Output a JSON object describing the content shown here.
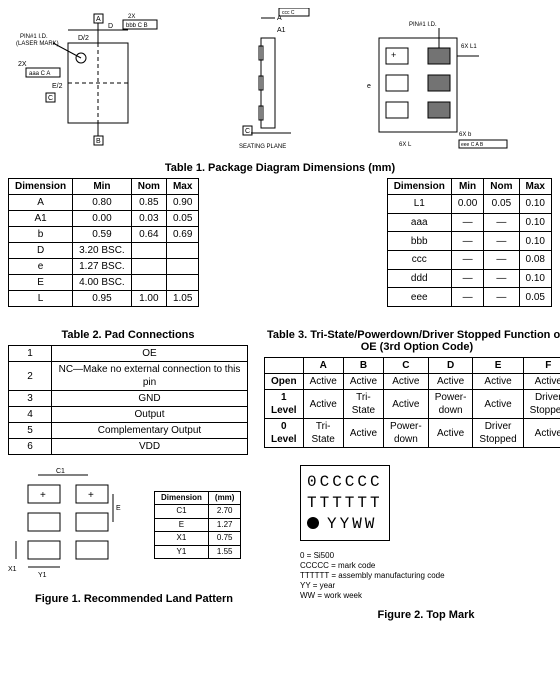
{
  "diagrams": {
    "left_labels": [
      "A",
      "B",
      "C",
      "D",
      "D/2",
      "E/2",
      "2X"
    ],
    "pin1_note": "PIN#1 I.D.\n(LASER MARK)",
    "datum_a": "aaa C A",
    "right_labels": [
      "A",
      "A1",
      "b",
      "e",
      "L",
      "C"
    ],
    "pin1_right": "PIN#1 I.D.",
    "six_x_l1": "6X L1",
    "six_x_l": "6X L",
    "six_x_b": "6X b",
    "datum_ccc": "ccc C",
    "datum_eee": "eee C A B",
    "seating_plane": "SEATING PLANE"
  },
  "table1": {
    "title": "Table 1. Package Diagram Dimensions (mm)",
    "headers": [
      "Dimension",
      "Min",
      "Nom",
      "Max"
    ],
    "left_rows": [
      [
        "A",
        "0.80",
        "0.85",
        "0.90"
      ],
      [
        "A1",
        "0.00",
        "0.03",
        "0.05"
      ],
      [
        "b",
        "0.59",
        "0.64",
        "0.69"
      ],
      [
        "D",
        "3.20 BSC.",
        "",
        ""
      ],
      [
        "e",
        "1.27 BSC.",
        "",
        ""
      ],
      [
        "E",
        "4.00 BSC.",
        "",
        ""
      ],
      [
        "L",
        "0.95",
        "1.00",
        "1.05"
      ]
    ],
    "right_rows": [
      [
        "L1",
        "0.00",
        "0.05",
        "0.10"
      ],
      [
        "aaa",
        "—",
        "—",
        "0.10"
      ],
      [
        "bbb",
        "—",
        "—",
        "0.10"
      ],
      [
        "ccc",
        "—",
        "—",
        "0.08"
      ],
      [
        "ddd",
        "—",
        "—",
        "0.10"
      ],
      [
        "eee",
        "—",
        "—",
        "0.05"
      ]
    ]
  },
  "table2": {
    "title": "Table 2. Pad Connections",
    "rows": [
      [
        "1",
        "OE"
      ],
      [
        "2",
        "NC—Make no external connection to this pin"
      ],
      [
        "3",
        "GND"
      ],
      [
        "4",
        "Output"
      ],
      [
        "5",
        "Complementary Output"
      ],
      [
        "6",
        "VDD"
      ]
    ]
  },
  "table3": {
    "title": "Table 3. Tri-State/Powerdown/Driver Stopped Function on OE (3rd Option Code)",
    "col_headers": [
      "",
      "A",
      "B",
      "C",
      "D",
      "E",
      "F"
    ],
    "rows": [
      [
        "Open",
        "Active",
        "Active",
        "Active",
        "Active",
        "Active",
        "Active"
      ],
      [
        "1 Level",
        "Active",
        "Tri-State",
        "Active",
        "Power-down",
        "Active",
        "Driver Stopped"
      ],
      [
        "0 Level",
        "Tri-State",
        "Active",
        "Power-down",
        "Active",
        "Driver Stopped",
        "Active"
      ]
    ]
  },
  "land_pattern": {
    "caption": "Figure 1. Recommended Land Pattern",
    "labels": [
      "C1",
      "E",
      "X1",
      "Y1"
    ],
    "table_headers": [
      "Dimension",
      "(mm)"
    ],
    "table_rows": [
      [
        "C1",
        "2.70"
      ],
      [
        "E",
        "1.27"
      ],
      [
        "X1",
        "0.75"
      ],
      [
        "Y1",
        "1.55"
      ]
    ]
  },
  "top_mark": {
    "caption": "Figure 2. Top Mark",
    "line1": "0CCCCC",
    "line2": "TTTTTT",
    "line3": "YYWW",
    "legend": [
      "0 = Si500",
      "CCCCC = mark code",
      "TTTTTT = assembly manufacturing code",
      "YY = year",
      "WW = work week"
    ]
  }
}
